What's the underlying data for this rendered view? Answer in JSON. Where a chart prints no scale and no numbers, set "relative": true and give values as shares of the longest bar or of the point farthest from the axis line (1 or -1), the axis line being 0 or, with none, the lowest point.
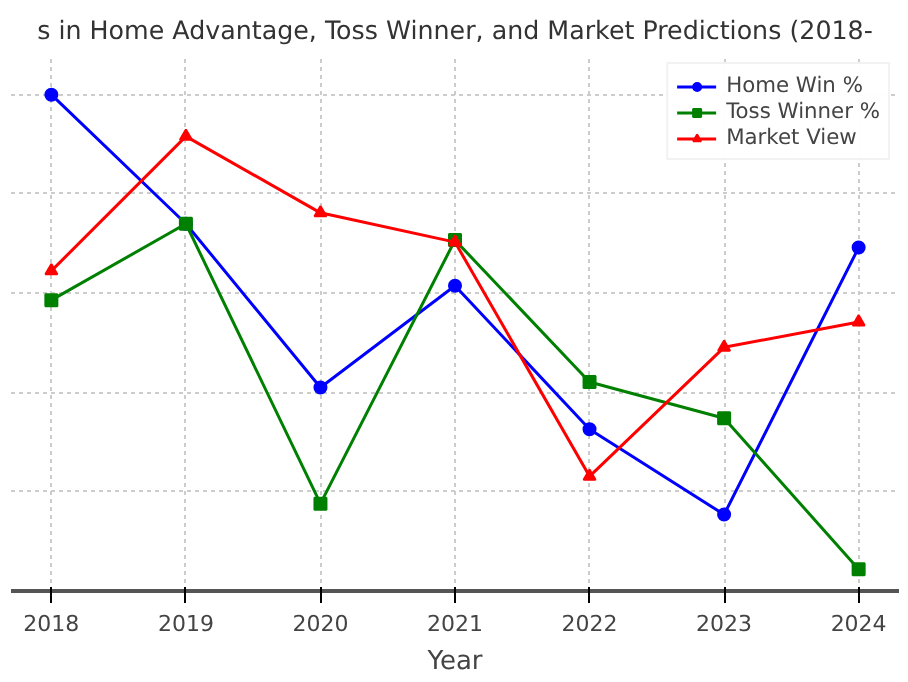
{
  "chart_data": {
    "type": "line",
    "title": "s in Home Advantage, Toss Winner, and Market Predictions (2018-",
    "xlabel": "Year",
    "x": [
      2018,
      2019,
      2020,
      2021,
      2022,
      2023,
      2024
    ],
    "xticks": [
      2018,
      2019,
      2020,
      2021,
      2022,
      2023,
      2024
    ],
    "xlim": [
      2017.7,
      2024.3
    ],
    "relative": true,
    "grid": true,
    "legend": "top right",
    "series": [
      {
        "name": "Home Win %",
        "color": "#0000ff",
        "marker": "circle",
        "values": [
          1,
          0.74,
          0.41,
          0.615,
          0.326,
          0.154,
          0.692
        ]
      },
      {
        "name": "Toss Winner %",
        "color": "#008000",
        "marker": "square",
        "values": [
          0.586,
          0.74,
          0.176,
          0.707,
          0.421,
          0.348,
          0.044
        ]
      },
      {
        "name": "Market View",
        "color": "#ff0000",
        "marker": "triangle",
        "values": [
          0.645,
          0.916,
          0.762,
          0.703,
          0.231,
          0.491,
          0.542
        ]
      }
    ]
  }
}
